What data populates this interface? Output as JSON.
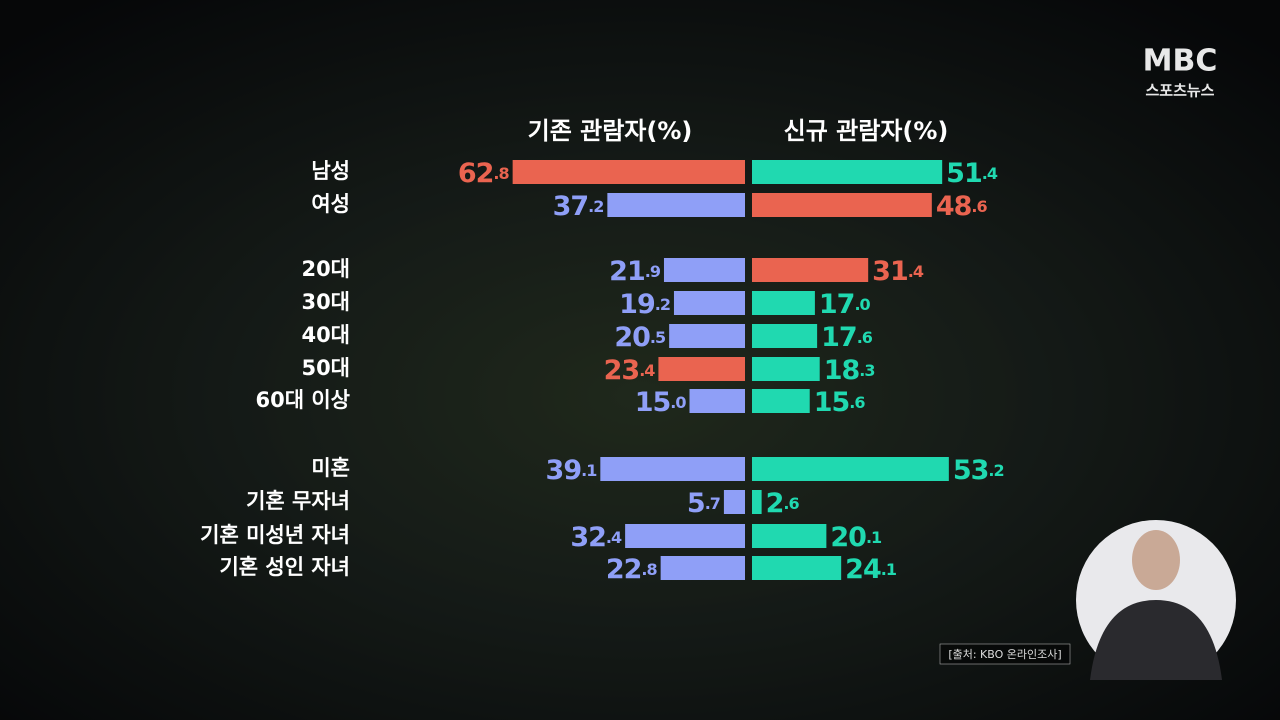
{
  "logo": {
    "main": "MBC",
    "sub": "스포츠뉴스"
  },
  "source": "[출처: KBO 온라인조사]",
  "chart_data": {
    "type": "butterfly-bar",
    "categories": [
      "남성",
      "여성",
      "20대",
      "30대",
      "40대",
      "50대",
      "60대 이상",
      "미혼",
      "기혼 무자녀",
      "기혼 미성년 자녀",
      "기혼 성인 자녀"
    ],
    "series": [
      {
        "name": "기존 관람자(%)",
        "color": "#8f9ff7",
        "colors": [
          "#ea6450",
          "#8f9ff7",
          "#8f9ff7",
          "#8f9ff7",
          "#8f9ff7",
          "#ea6450",
          "#8f9ff7",
          "#8f9ff7",
          "#8f9ff7",
          "#8f9ff7",
          "#8f9ff7"
        ],
        "values": [
          62.8,
          37.2,
          21.9,
          19.2,
          20.5,
          23.4,
          15.0,
          39.1,
          5.7,
          32.4,
          22.8
        ],
        "value_labels": [
          "62.8",
          "37.2",
          "21.9",
          "19.2",
          "20.5",
          "23.4",
          "15.0",
          "39.1",
          "5.7",
          "32.4",
          "22.8"
        ]
      },
      {
        "name": "신규 관람자(%)",
        "color": "#20d9b0",
        "colors": [
          "#20d9b0",
          "#ea6450",
          "#ea6450",
          "#20d9b0",
          "#20d9b0",
          "#20d9b0",
          "#20d9b0",
          "#20d9b0",
          "#20d9b0",
          "#20d9b0",
          "#20d9b0"
        ],
        "values": [
          51.4,
          48.6,
          31.4,
          17.0,
          17.6,
          18.3,
          15.6,
          53.2,
          2.6,
          20.1,
          24.1
        ],
        "value_labels": [
          "51.4",
          "48.6",
          "31.4",
          "17.0",
          "17.6",
          "18.3",
          "15.6",
          "53.2",
          "2.6",
          "20.1",
          "24.1"
        ]
      }
    ]
  }
}
